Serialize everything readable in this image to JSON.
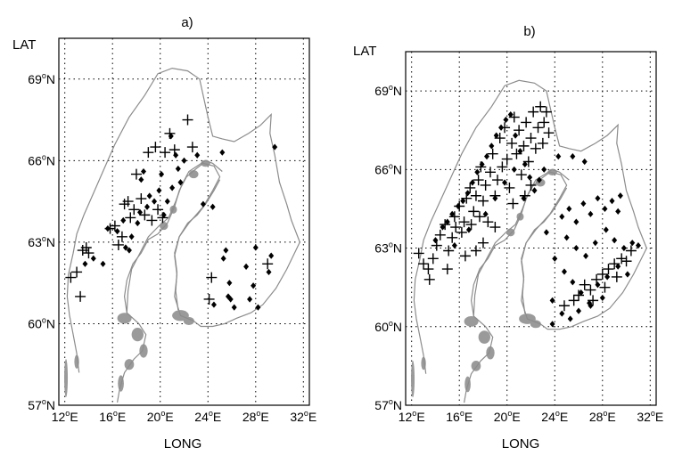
{
  "figure": {
    "panels": [
      {
        "id": "a",
        "title": "a)",
        "ylabel": "LAT",
        "xlabel": "LONG"
      },
      {
        "id": "b",
        "title": "b)",
        "ylabel": "LAT",
        "xlabel": "LONG"
      }
    ],
    "xtick_labels": [
      "12°E",
      "16°E",
      "20°E",
      "24°E",
      "28°E",
      "32°E"
    ],
    "ytick_labels": [
      "57°N",
      "60°N",
      "63°N",
      "66°N",
      "69°N"
    ]
  },
  "colors": {
    "coastline": "#8c8c8c",
    "markers": "#000000",
    "grid": "#000000"
  },
  "chart_data": [
    {
      "type": "scatter",
      "title": "a)",
      "xlabel": "LONG",
      "ylabel": "LAT",
      "xlim": [
        11.5,
        32.5
      ],
      "ylim": [
        57,
        70.5
      ],
      "grid": true,
      "xticks": [
        12,
        16,
        20,
        24,
        28,
        32
      ],
      "yticks": [
        57,
        60,
        63,
        66,
        69
      ],
      "series": [
        {
          "marker": "plus",
          "points": [
            [
              12.5,
              61.7
            ],
            [
              13.0,
              61.9
            ],
            [
              13.3,
              61.0
            ],
            [
              13.5,
              62.7
            ],
            [
              13.8,
              62.8
            ],
            [
              14.0,
              62.6
            ],
            [
              15.8,
              63.5
            ],
            [
              16.2,
              63.6
            ],
            [
              16.5,
              62.9
            ],
            [
              16.8,
              63.2
            ],
            [
              17.0,
              64.4
            ],
            [
              17.3,
              64.5
            ],
            [
              17.5,
              63.9
            ],
            [
              17.8,
              64.2
            ],
            [
              18.0,
              65.5
            ],
            [
              18.4,
              64.6
            ],
            [
              18.7,
              64.0
            ],
            [
              19.0,
              66.3
            ],
            [
              19.3,
              63.8
            ],
            [
              19.6,
              66.5
            ],
            [
              19.8,
              64.2
            ],
            [
              20.2,
              63.9
            ],
            [
              20.4,
              66.3
            ],
            [
              20.8,
              67.0
            ],
            [
              21.2,
              66.4
            ],
            [
              22.3,
              67.5
            ],
            [
              22.7,
              66.5
            ],
            [
              24.3,
              61.7
            ],
            [
              24.1,
              60.9
            ],
            [
              29.0,
              62.2
            ]
          ]
        },
        {
          "marker": "diamond",
          "points": [
            [
              13.7,
              62.2
            ],
            [
              14.4,
              62.4
            ],
            [
              15.2,
              62.2
            ],
            [
              15.6,
              63.5
            ],
            [
              16.4,
              63.4
            ],
            [
              16.9,
              63.8
            ],
            [
              17.1,
              62.8
            ],
            [
              17.4,
              62.7
            ],
            [
              17.6,
              63.2
            ],
            [
              18.1,
              63.7
            ],
            [
              18.3,
              64.1
            ],
            [
              18.4,
              65.3
            ],
            [
              18.6,
              65.6
            ],
            [
              18.9,
              64.3
            ],
            [
              19.1,
              64.7
            ],
            [
              19.5,
              64.5
            ],
            [
              19.9,
              64.9
            ],
            [
              20.1,
              65.5
            ],
            [
              20.3,
              64.0
            ],
            [
              20.6,
              64.5
            ],
            [
              21.0,
              65.0
            ],
            [
              21.3,
              66.2
            ],
            [
              21.5,
              65.7
            ],
            [
              21.7,
              65.2
            ],
            [
              20.9,
              66.9
            ],
            [
              22.0,
              66.0
            ],
            [
              23.1,
              66.2
            ],
            [
              23.6,
              64.4
            ],
            [
              24.4,
              64.3
            ],
            [
              25.2,
              66.3
            ],
            [
              25.3,
              62.4
            ],
            [
              25.5,
              62.7
            ],
            [
              25.8,
              61.5
            ],
            [
              25.7,
              61.0
            ],
            [
              24.5,
              60.7
            ],
            [
              25.9,
              60.9
            ],
            [
              26.2,
              60.6
            ],
            [
              27.2,
              62.1
            ],
            [
              27.8,
              61.4
            ],
            [
              27.5,
              60.9
            ],
            [
              28.0,
              62.8
            ],
            [
              28.2,
              60.6
            ],
            [
              29.3,
              62.5
            ],
            [
              29.1,
              61.9
            ],
            [
              29.6,
              66.5
            ]
          ]
        }
      ]
    },
    {
      "type": "scatter",
      "title": "b)",
      "xlabel": "LONG",
      "ylabel": "LAT",
      "xlim": [
        11.5,
        32.5
      ],
      "ylim": [
        57,
        70.5
      ],
      "grid": true,
      "xticks": [
        12,
        16,
        20,
        24,
        28,
        32
      ],
      "yticks": [
        57,
        60,
        63,
        66,
        69
      ],
      "series": [
        {
          "marker": "plus",
          "points": [
            [
              12.6,
              62.8
            ],
            [
              13.0,
              62.4
            ],
            [
              13.4,
              62.2
            ],
            [
              13.8,
              62.6
            ],
            [
              14.1,
              63.1
            ],
            [
              14.4,
              63.5
            ],
            [
              14.8,
              63.9
            ],
            [
              15.1,
              62.9
            ],
            [
              15.4,
              63.4
            ],
            [
              15.7,
              63.8
            ],
            [
              15.6,
              64.2
            ],
            [
              16.0,
              64.6
            ],
            [
              16.2,
              63.6
            ],
            [
              16.4,
              64.0
            ],
            [
              16.6,
              64.9
            ],
            [
              16.9,
              65.3
            ],
            [
              17.0,
              63.9
            ],
            [
              17.2,
              64.4
            ],
            [
              17.4,
              65.0
            ],
            [
              17.6,
              65.6
            ],
            [
              17.8,
              66.1
            ],
            [
              18.0,
              64.8
            ],
            [
              18.2,
              65.4
            ],
            [
              18.4,
              64.0
            ],
            [
              18.6,
              65.9
            ],
            [
              18.8,
              66.6
            ],
            [
              19.0,
              65.0
            ],
            [
              19.2,
              65.6
            ],
            [
              19.4,
              67.2
            ],
            [
              19.6,
              66.1
            ],
            [
              19.8,
              67.6
            ],
            [
              20.0,
              66.4
            ],
            [
              20.2,
              65.3
            ],
            [
              20.4,
              67.0
            ],
            [
              20.6,
              68.0
            ],
            [
              20.8,
              66.6
            ],
            [
              21.0,
              67.5
            ],
            [
              21.2,
              65.8
            ],
            [
              21.4,
              66.9
            ],
            [
              21.6,
              67.8
            ],
            [
              21.8,
              66.3
            ],
            [
              22.0,
              67.2
            ],
            [
              22.2,
              68.2
            ],
            [
              22.4,
              66.8
            ],
            [
              22.6,
              67.6
            ],
            [
              22.8,
              68.4
            ],
            [
              23.0,
              67.0
            ],
            [
              23.1,
              67.8
            ],
            [
              23.3,
              68.2
            ],
            [
              23.5,
              67.4
            ],
            [
              16.5,
              62.7
            ],
            [
              17.4,
              62.9
            ],
            [
              18.0,
              63.2
            ],
            [
              13.5,
              61.8
            ],
            [
              15.0,
              62.2
            ],
            [
              19.0,
              63.8
            ],
            [
              20.5,
              64.7
            ],
            [
              21.5,
              65.0
            ],
            [
              22.0,
              65.4
            ],
            [
              17.7,
              64.2
            ],
            [
              26.0,
              61.2
            ],
            [
              26.5,
              61.6
            ],
            [
              27.0,
              61.4
            ],
            [
              27.5,
              61.8
            ],
            [
              28.0,
              62.0
            ],
            [
              28.5,
              62.2
            ],
            [
              29.0,
              62.4
            ],
            [
              29.6,
              62.6
            ],
            [
              30.0,
              62.5
            ],
            [
              30.4,
              62.9
            ],
            [
              27.2,
              61.0
            ],
            [
              28.2,
              61.5
            ],
            [
              29.2,
              61.9
            ],
            [
              24.8,
              60.8
            ],
            [
              25.6,
              61.0
            ]
          ]
        },
        {
          "marker": "diamond",
          "points": [
            [
              14.0,
              63.3
            ],
            [
              14.6,
              63.8
            ],
            [
              15.0,
              64.0
            ],
            [
              15.4,
              64.3
            ],
            [
              15.9,
              64.6
            ],
            [
              16.3,
              64.8
            ],
            [
              16.7,
              65.1
            ],
            [
              17.1,
              65.5
            ],
            [
              17.5,
              65.9
            ],
            [
              17.9,
              66.2
            ],
            [
              18.3,
              66.5
            ],
            [
              18.7,
              66.9
            ],
            [
              19.1,
              67.3
            ],
            [
              19.5,
              67.6
            ],
            [
              19.9,
              67.9
            ],
            [
              20.3,
              68.1
            ],
            [
              20.7,
              67.3
            ],
            [
              21.1,
              66.7
            ],
            [
              21.5,
              66.2
            ],
            [
              21.9,
              65.7
            ],
            [
              22.3,
              65.2
            ],
            [
              22.7,
              65.6
            ],
            [
              23.1,
              66.0
            ],
            [
              18.2,
              64.3
            ],
            [
              19.0,
              64.9
            ],
            [
              19.8,
              65.5
            ],
            [
              20.6,
              66.0
            ],
            [
              21.4,
              64.9
            ],
            [
              16.8,
              63.7
            ],
            [
              15.6,
              63.1
            ],
            [
              24.3,
              66.5
            ],
            [
              25.5,
              66.5
            ],
            [
              26.5,
              66.3
            ],
            [
              24.6,
              64.2
            ],
            [
              25.2,
              64.5
            ],
            [
              25.8,
              64.0
            ],
            [
              26.4,
              64.7
            ],
            [
              27.0,
              64.3
            ],
            [
              27.6,
              64.9
            ],
            [
              28.2,
              64.5
            ],
            [
              28.8,
              64.8
            ],
            [
              29.3,
              64.4
            ],
            [
              25.0,
              63.4
            ],
            [
              25.8,
              63.0
            ],
            [
              26.6,
              62.7
            ],
            [
              27.4,
              63.2
            ],
            [
              28.3,
              63.7
            ],
            [
              29.0,
              63.3
            ],
            [
              29.8,
              63.0
            ],
            [
              30.5,
              63.2
            ],
            [
              24.0,
              62.6
            ],
            [
              24.8,
              62.1
            ],
            [
              25.5,
              61.7
            ],
            [
              26.2,
              61.3
            ],
            [
              26.9,
              60.9
            ],
            [
              27.6,
              61.6
            ],
            [
              28.4,
              61.9
            ],
            [
              29.3,
              62.3
            ],
            [
              30.1,
              62.0
            ],
            [
              31.0,
              63.1
            ],
            [
              23.8,
              61.0
            ],
            [
              24.6,
              60.5
            ],
            [
              25.3,
              60.3
            ],
            [
              23.8,
              60.1
            ],
            [
              26.0,
              60.6
            ],
            [
              27.0,
              60.8
            ],
            [
              28.0,
              61.1
            ],
            [
              23.3,
              63.6
            ],
            [
              29.5,
              65.0
            ]
          ]
        }
      ]
    }
  ]
}
